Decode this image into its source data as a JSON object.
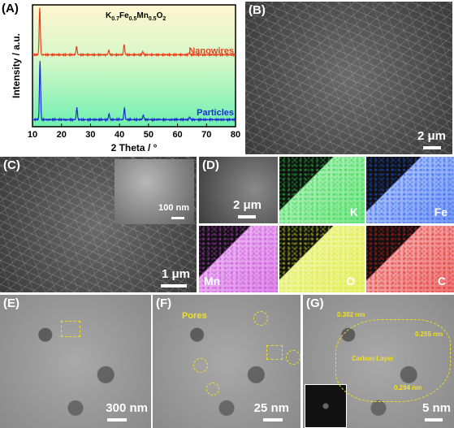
{
  "panels": {
    "a": {
      "label": "(A)",
      "chart_data": {
        "type": "line",
        "title": "K0.7Fe0.5Mn0.5O2",
        "formula": {
          "k": "K",
          "k_sub": "0.7",
          "fe": "Fe",
          "fe_sub": "0.5",
          "mn": "Mn",
          "mn_sub": "0.5",
          "o": "O",
          "o_sub": "2"
        },
        "xlabel": "2 Theta / °",
        "ylabel": "Intensity / a.u.",
        "xlim": [
          10,
          80
        ],
        "xticks": [
          10,
          20,
          30,
          40,
          50,
          60,
          70,
          80
        ],
        "series": [
          {
            "name": "Nanowires",
            "color": "#e8431e",
            "peaks": [
              [
                12.5,
                1.0
              ],
              [
                25.2,
                0.18
              ],
              [
                36.3,
                0.1
              ],
              [
                41.6,
                0.22
              ],
              [
                48.0,
                0.07
              ],
              [
                64.0,
                0.04
              ]
            ]
          },
          {
            "name": "Particles",
            "color": "#1a2fd1",
            "peaks": [
              [
                12.6,
                1.0
              ],
              [
                25.3,
                0.2
              ],
              [
                36.4,
                0.1
              ],
              [
                41.7,
                0.2
              ],
              [
                48.2,
                0.08
              ],
              [
                64.2,
                0.04
              ]
            ]
          }
        ],
        "background_gradient": [
          "#fff6d0",
          "#d6f7c8",
          "#6ef0b0"
        ]
      }
    },
    "b": {
      "label": "(B)",
      "scalebar": "2 μm"
    },
    "c": {
      "label": "(C)",
      "scalebar": "1 μm",
      "inset_scalebar": "100 nm"
    },
    "d": {
      "label": "(D)",
      "scalebar": "2 μm",
      "maps": [
        {
          "element": "K",
          "color": "#1fd43c"
        },
        {
          "element": "Fe",
          "color": "#1b55f0"
        },
        {
          "element": "Mn",
          "color": "#c63ad8"
        },
        {
          "element": "O",
          "color": "#d8e81a"
        },
        {
          "element": "C",
          "color": "#e01b1b"
        }
      ]
    },
    "e": {
      "label": "(E)",
      "scalebar": "300 nm"
    },
    "f": {
      "label": "(F)",
      "scalebar": "25 nm",
      "annotation": "Pores"
    },
    "g": {
      "label": "(G)",
      "scalebar": "5 nm",
      "annotations": {
        "d1": "0.382 nm",
        "d2": "0.255 nm",
        "d3": "0.294 nm",
        "layer": "Carbon Layer"
      }
    }
  }
}
